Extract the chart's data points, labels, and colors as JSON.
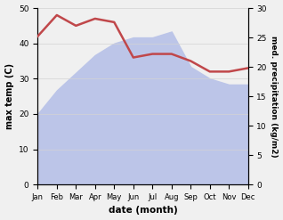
{
  "months": [
    "Jan",
    "Feb",
    "Mar",
    "Apr",
    "May",
    "Jun",
    "Jul",
    "Aug",
    "Sep",
    "Oct",
    "Nov",
    "Dec"
  ],
  "month_indices": [
    1,
    2,
    3,
    4,
    5,
    6,
    7,
    8,
    9,
    10,
    11,
    12
  ],
  "temperature": [
    42,
    48,
    45,
    47,
    46,
    36,
    37,
    37,
    35,
    32,
    32,
    33
  ],
  "precipitation": [
    12,
    16,
    19,
    22,
    24,
    25,
    25,
    26,
    20,
    18,
    17,
    17
  ],
  "temp_color": "#c0474a",
  "precip_fill_color": "#bcc5e8",
  "temp_ylim": [
    0,
    50
  ],
  "precip_ylim": [
    0,
    30
  ],
  "ylabel_left": "max temp (C)",
  "ylabel_right": "med. precipitation (kg/m2)",
  "xlabel": "date (month)",
  "yticks_left": [
    0,
    10,
    20,
    30,
    40,
    50
  ],
  "yticks_right": [
    0,
    5,
    10,
    15,
    20,
    25,
    30
  ],
  "background_color": "#f0f0f0"
}
